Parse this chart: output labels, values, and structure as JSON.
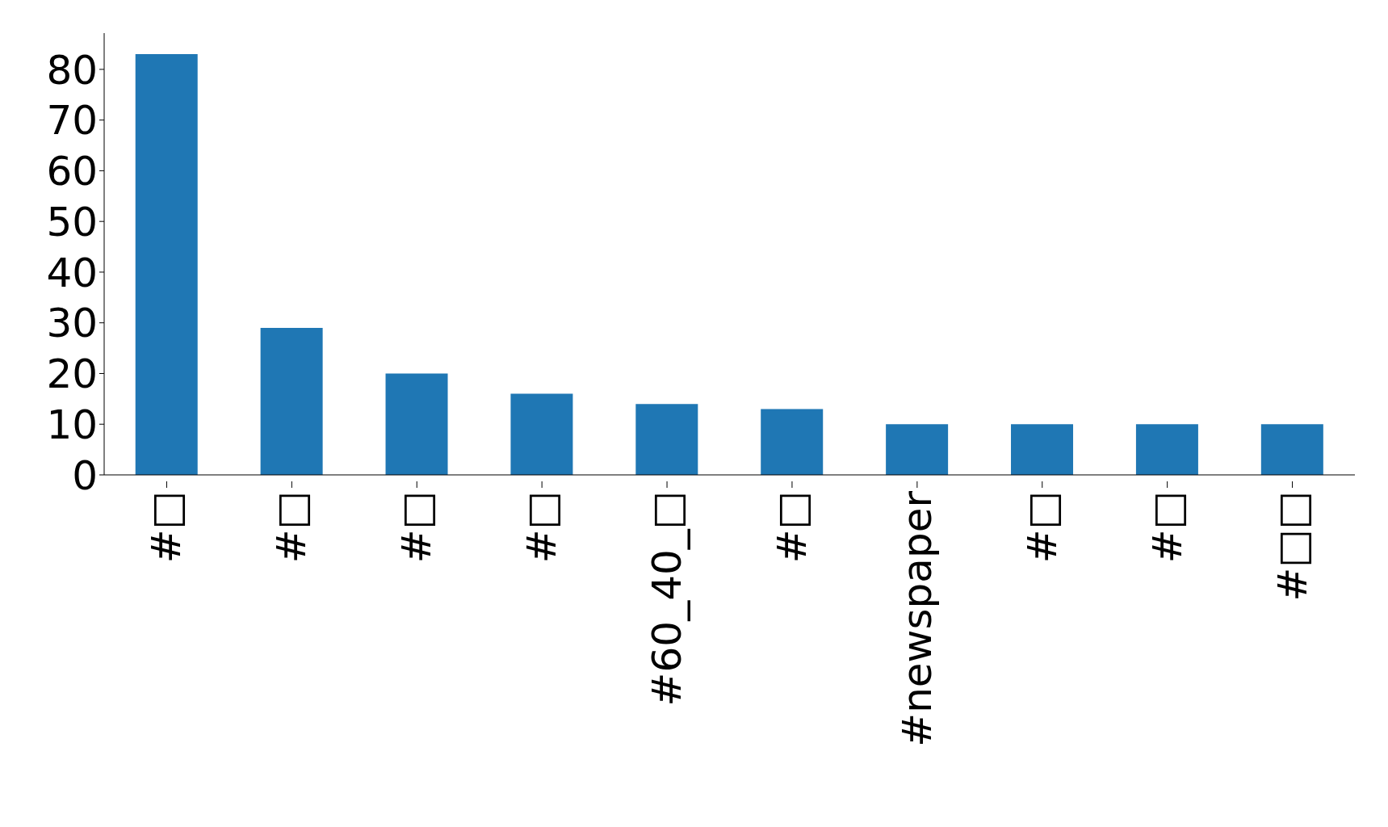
{
  "chart_data": {
    "type": "bar",
    "categories": [
      "#□",
      "#□",
      "#□",
      "#□",
      "#60_40_□",
      "#□",
      "#newspaper",
      "#□",
      "#□",
      "#□□"
    ],
    "values": [
      83,
      29,
      20,
      16,
      14,
      13,
      10,
      10,
      10,
      10
    ],
    "color": "#1f77b4",
    "ylim": [
      0,
      87.15
    ],
    "yticks": [
      0,
      10,
      20,
      30,
      40,
      50,
      60,
      70,
      80
    ],
    "grid": false,
    "legend": false
  }
}
